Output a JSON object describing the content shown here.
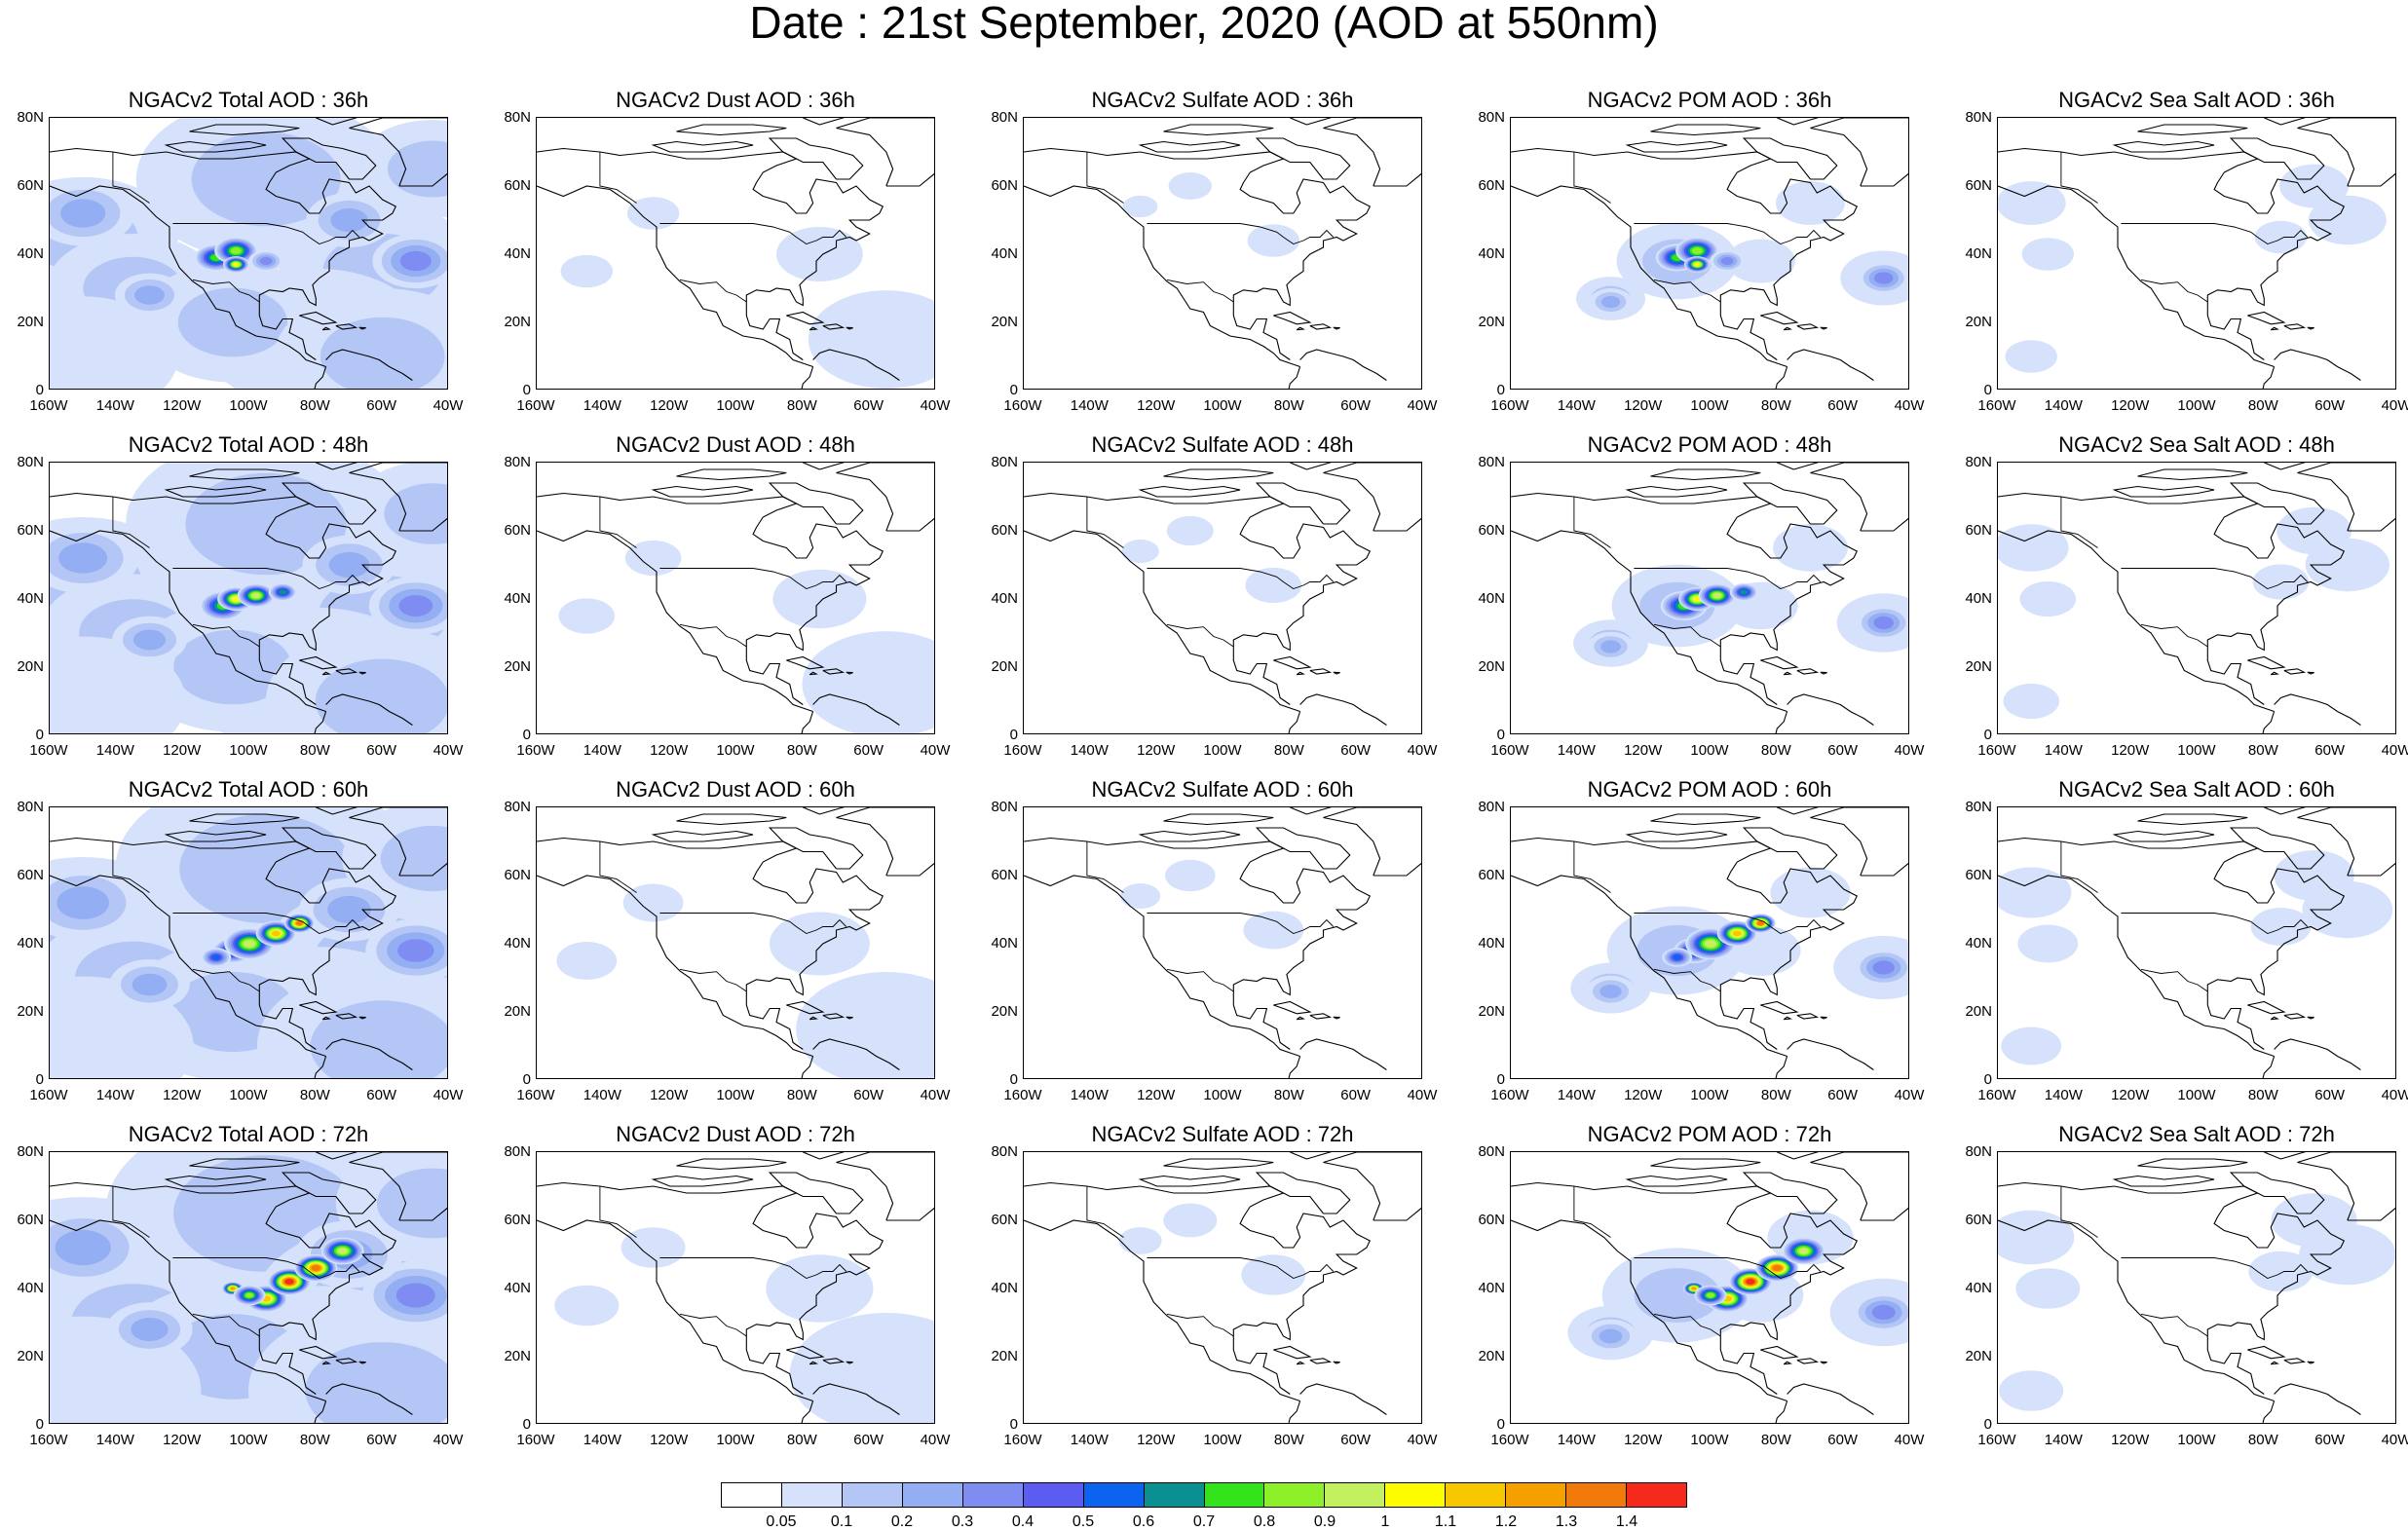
{
  "title": "Date : 21st  September, 2020 (AOD at 550nm)",
  "lat_labels": [
    "80N",
    "60N",
    "40N",
    "20N",
    "0"
  ],
  "lon_labels": [
    "160W",
    "140W",
    "120W",
    "100W",
    "80W",
    "60W",
    "40W"
  ],
  "forecast_hours": [
    "36h",
    "48h",
    "60h",
    "72h"
  ],
  "species": [
    "Total",
    "Dust",
    "Sulfate",
    "POM",
    "Sea Salt"
  ],
  "panels": [
    [
      "NGACv2 Total AOD : 36h",
      "NGACv2 Dust AOD : 36h",
      "NGACv2 Sulfate AOD : 36h",
      "NGACv2 POM AOD : 36h",
      "NGACv2 Sea Salt AOD : 36h"
    ],
    [
      "NGACv2 Total AOD : 48h",
      "NGACv2 Dust AOD : 48h",
      "NGACv2 Sulfate AOD : 48h",
      "NGACv2 POM AOD : 48h",
      "NGACv2 Sea Salt AOD : 48h"
    ],
    [
      "NGACv2 Total AOD : 60h",
      "NGACv2 Dust AOD : 60h",
      "NGACv2 Sulfate AOD : 60h",
      "NGACv2 POM AOD : 60h",
      "NGACv2 Sea Salt AOD : 60h"
    ],
    [
      "NGACv2 Total AOD : 72h",
      "NGACv2 Dust AOD : 72h",
      "NGACv2 Sulfate AOD : 72h",
      "NGACv2 POM AOD : 72h",
      "NGACv2 Sea Salt  AOD : 72h"
    ]
  ],
  "map_extent": {
    "lon": [
      -160,
      -40
    ],
    "lat": [
      0,
      80
    ]
  },
  "colorbar": {
    "labels": [
      "0.05",
      "0.1",
      "0.2",
      "0.3",
      "0.4",
      "0.5",
      "0.6",
      "0.7",
      "0.8",
      "0.9",
      "1",
      "1.1",
      "1.2",
      "1.3",
      "1.4"
    ],
    "colors": [
      "#ffffff",
      "#d6e2fb",
      "#b4c6f5",
      "#93aef2",
      "#7f8df2",
      "#5c5cf0",
      "#0b63f0",
      "#0a9090",
      "#33e31c",
      "#8ef029",
      "#c4f060",
      "#fdfd00",
      "#f7c800",
      "#f6a000",
      "#f27a0a",
      "#f52a1a"
    ]
  }
}
